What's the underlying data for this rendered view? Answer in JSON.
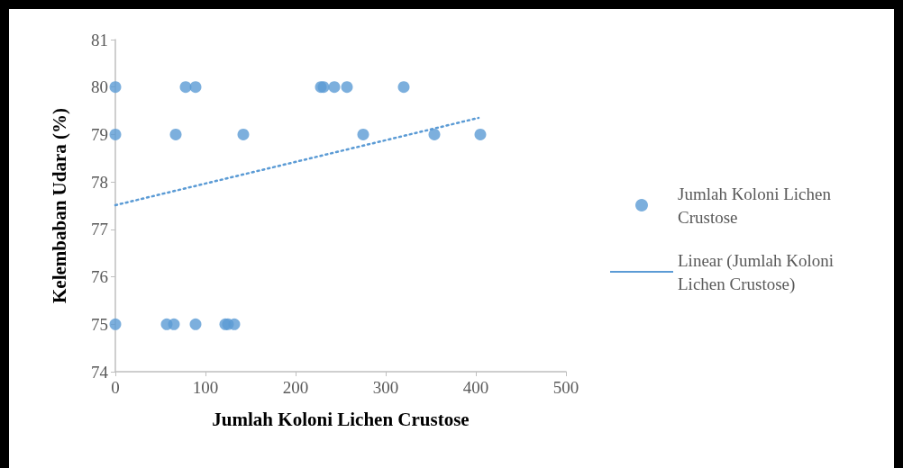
{
  "chart_data": {
    "type": "scatter",
    "xlabel": "Jumlah Koloni Lichen Crustose",
    "ylabel": "Kelembaban Udara (%)",
    "xlim": [
      0,
      500
    ],
    "xticks": [
      0,
      100,
      200,
      300,
      400,
      500
    ],
    "ylim": [
      74,
      81
    ],
    "yticks": [
      74,
      75,
      76,
      77,
      78,
      79,
      80,
      81
    ],
    "grid": false,
    "legend": "right",
    "series": [
      {
        "name": "Jumlah Koloni Lichen Crustose",
        "color": "#5b9bd5",
        "marker": "circle",
        "x": [
          0,
          78,
          89,
          228,
          231,
          243,
          257,
          320,
          0,
          67,
          142,
          275,
          354,
          405,
          0,
          57,
          65,
          89,
          122,
          125,
          132
        ],
        "values": [
          80,
          80,
          80,
          80,
          80,
          80,
          80,
          80,
          79,
          79,
          79,
          79,
          79,
          79,
          75,
          75,
          75,
          75,
          75,
          75,
          75
        ]
      },
      {
        "name": "Linear (Jumlah Koloni Lichen Crustose)",
        "color": "#5b9bd5",
        "type": "line",
        "line_style": "dotted",
        "x": [
          0,
          403
        ],
        "values": [
          77.51,
          79.35
        ]
      }
    ]
  }
}
